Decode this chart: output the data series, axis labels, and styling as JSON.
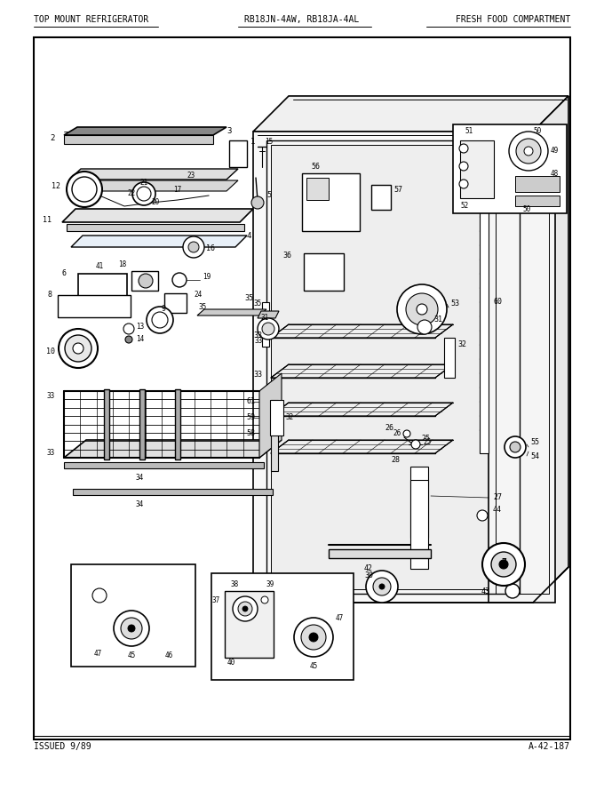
{
  "title_left": "TOP MOUNT REFRIGERATOR",
  "title_center": "RB18JN-4AW, RB18JA-4AL",
  "title_right": "FRESH FOOD COMPARTMENT",
  "footer_left": "ISSUED 9/89",
  "footer_right": "A-42-187",
  "bg_color": "#ffffff",
  "border_color": "#000000",
  "text_color": "#000000",
  "fig_width": 6.8,
  "fig_height": 8.9,
  "dpi": 100
}
